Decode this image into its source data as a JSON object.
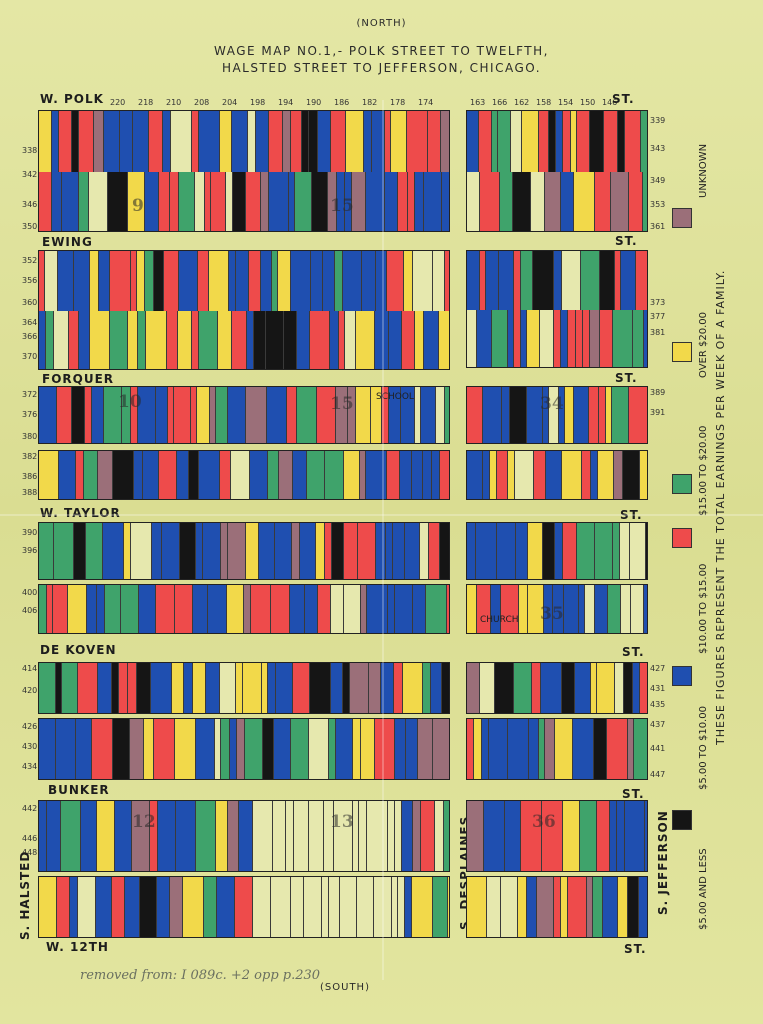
{
  "header": {
    "north": "(NORTH)",
    "title_line1": "WAGE MAP NO.1,- POLK STREET TO TWELFTH,",
    "title_line2": "HALSTED STREET TO JEFFERSON, CHICAGO.",
    "south": "(SOUTH)"
  },
  "handwritten_note": "removed from: I 089c. +2 opp p.230",
  "streets": {
    "polk": "W. POLK",
    "polk_st": "ST.",
    "ewing": "EWING",
    "ewing_st": "ST.",
    "forquer": "FORQUER",
    "forquer_st": "ST.",
    "taylor": "W. TAYLOR",
    "taylor_st": "ST.",
    "dekoven": "DE KOVEN",
    "dekoven_st": "ST.",
    "bunker": "BUNKER",
    "bunker_st": "ST.",
    "twelfth": "W. 12TH",
    "twelfth_st": "ST.",
    "halsted": "S. HALSTED",
    "desplaines": "S. DESPLAINES",
    "jefferson": "S. JEFFERSON"
  },
  "block_numbers": [
    "9",
    "10",
    "15",
    "15",
    "34",
    "12",
    "13",
    "35",
    "36"
  ],
  "block_labels": {
    "school": "SCHOOL",
    "church": "CHURCH"
  },
  "legend": {
    "note": "THESE FIGURES REPRESENT THE TOTAL EARNINGS PER WEEK OF A FAMILY.",
    "items": [
      {
        "label": "UNKNOWN",
        "color": "#9b6f79"
      },
      {
        "label": "OVER $20.00",
        "color": "#f2d94a"
      },
      {
        "label": "$15.00 TO $20.00",
        "color": "#3fa36b"
      },
      {
        "label": "$10.00 TO $15.00",
        "color": "#ee4b4b"
      },
      {
        "label": "$5.00 TO $10.00",
        "color": "#1f4fb0"
      },
      {
        "label": "$5.00 AND LESS",
        "color": "#151515"
      }
    ]
  },
  "colors": {
    "paper": "#dfe29a",
    "unknown": "#9b6f79",
    "over20": "#f2d94a",
    "15to20": "#3fa36b",
    "10to15": "#ee4b4b",
    "5to10": "#1f4fb0",
    "5orless": "#151515",
    "vacant": "#e6e8ae"
  },
  "house_numbers_top": [
    "220",
    "218",
    "210",
    "208",
    "204",
    "198",
    "194",
    "190",
    "186",
    "182",
    "178",
    "174",
    "163",
    "166",
    "162",
    "158",
    "154",
    "150",
    "146"
  ],
  "row_numbers_left": [
    "338",
    "342",
    "346",
    "350",
    "352",
    "356",
    "360",
    "364",
    "366",
    "370",
    "372",
    "376",
    "380",
    "382",
    "386",
    "388",
    "390",
    "396",
    "400",
    "406",
    "414",
    "420",
    "426",
    "430",
    "434",
    "442",
    "446",
    "448"
  ],
  "row_numbers_right": [
    "339",
    "343",
    "349",
    "353",
    "361",
    "373",
    "377",
    "381",
    "389",
    "391",
    "427",
    "431",
    "435",
    "437",
    "441",
    "447"
  ]
}
